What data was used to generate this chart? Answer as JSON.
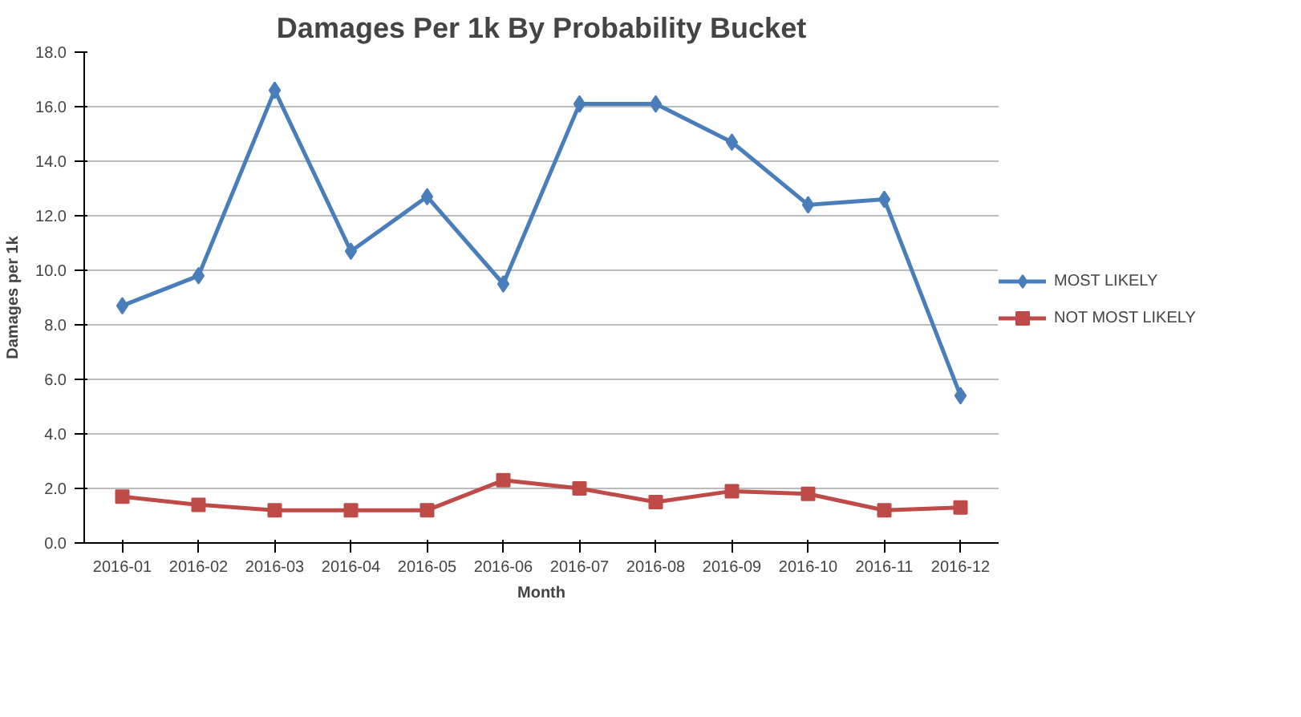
{
  "chart_data": {
    "type": "line",
    "title": "Damages Per 1k By Probability Bucket",
    "xlabel": "Month",
    "ylabel": "Damages per 1k",
    "categories": [
      "2016-01",
      "2016-02",
      "2016-03",
      "2016-04",
      "2016-05",
      "2016-06",
      "2016-07",
      "2016-08",
      "2016-09",
      "2016-10",
      "2016-11",
      "2016-12"
    ],
    "series": [
      {
        "name": "MOST LIKELY",
        "color": "#4a7ebb",
        "marker": "diamond",
        "values": [
          8.7,
          9.8,
          16.6,
          10.7,
          12.7,
          9.5,
          16.1,
          16.1,
          14.7,
          12.4,
          12.6,
          5.4
        ]
      },
      {
        "name": "NOT MOST LIKELY",
        "color": "#be4b48",
        "marker": "square",
        "values": [
          1.7,
          1.4,
          1.2,
          1.2,
          1.2,
          2.3,
          2.0,
          1.5,
          1.9,
          1.8,
          1.2,
          1.3
        ]
      }
    ],
    "ylim": [
      0,
      18
    ],
    "yticks": [
      {
        "value": 0,
        "label": "0.0"
      },
      {
        "value": 2,
        "label": "2.0"
      },
      {
        "value": 4,
        "label": "4.0"
      },
      {
        "value": 6,
        "label": "6.0"
      },
      {
        "value": 8,
        "label": "8.0"
      },
      {
        "value": 10,
        "label": "10.0"
      },
      {
        "value": 12,
        "label": "12.0"
      },
      {
        "value": 14,
        "label": "14.0"
      },
      {
        "value": 16,
        "label": "16.0"
      },
      {
        "value": 18,
        "label": "18.0"
      }
    ],
    "grid": "y",
    "legend": "right",
    "line_style": "solid"
  }
}
